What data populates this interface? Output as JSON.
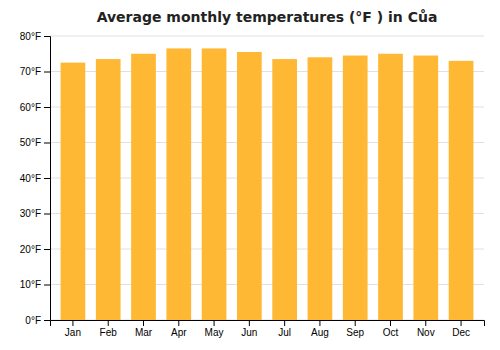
{
  "chart_data": {
    "type": "bar",
    "title": "Average monthly temperatures (°F ) in Cůa",
    "categories": [
      "Jan",
      "Feb",
      "Mar",
      "Apr",
      "May",
      "Jun",
      "Jul",
      "Aug",
      "Sep",
      "Oct",
      "Nov",
      "Dec"
    ],
    "values": [
      72.5,
      73.5,
      75.0,
      76.5,
      76.5,
      75.5,
      73.5,
      74.0,
      74.5,
      75.0,
      74.5,
      73.0
    ],
    "color": "#FFB833",
    "ylim": [
      0,
      80
    ],
    "yticks": [
      {
        "value": 0,
        "label": "0°F"
      },
      {
        "value": 10,
        "label": "10°F"
      },
      {
        "value": 20,
        "label": "20°F"
      },
      {
        "value": 30,
        "label": "30°F"
      },
      {
        "value": 40,
        "label": "40°F"
      },
      {
        "value": 50,
        "label": "50°F"
      },
      {
        "value": 60,
        "label": "60°F"
      },
      {
        "value": 70,
        "label": "70°F"
      },
      {
        "value": 80,
        "label": "80°F"
      }
    ],
    "grid": true
  }
}
